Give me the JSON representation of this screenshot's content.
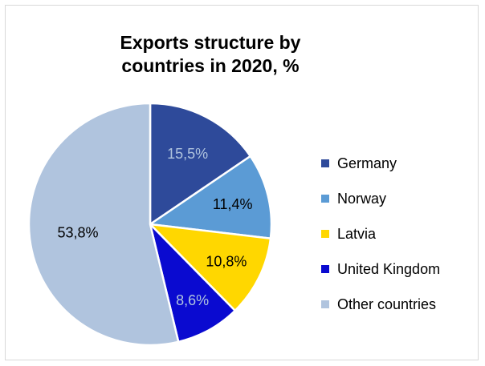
{
  "chart_data": {
    "type": "pie",
    "title": "Exports structure by countries in 2020, %",
    "categories": [
      "Germany",
      "Norway",
      "Latvia",
      "United Kingdom",
      "Other countries"
    ],
    "values": [
      15.5,
      11.4,
      10.8,
      8.6,
      53.8
    ],
    "data_labels": [
      "15,5%",
      "11,4%",
      "10,8%",
      "8,6%",
      "53,8%"
    ],
    "colors": [
      "#2e4a9a",
      "#5b9bd5",
      "#ffd700",
      "#0a0ad0",
      "#b0c4de"
    ],
    "label_colors": [
      "#b0c4de",
      "#000000",
      "#000000",
      "#b0c4de",
      "#000000"
    ],
    "legend": "right"
  }
}
